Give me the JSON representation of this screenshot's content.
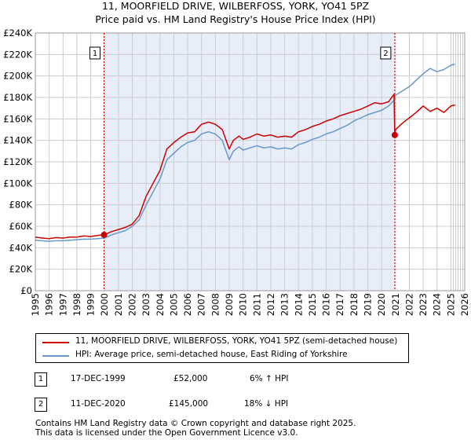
{
  "title_line1": "11, MOORFIELD DRIVE, WILBERFOSS, YORK, YO41 5PZ",
  "title_line2": "Price paid vs. HM Land Registry's House Price Index (HPI)",
  "colors": {
    "property": "#cc0000",
    "hpi": "#6699cc",
    "shade": "#e8edfa",
    "grid": "#cccccc",
    "marker_line": "#cc0000"
  },
  "chart_data": {
    "type": "line",
    "title": "11, MOORFIELD DRIVE, WILBERFOSS, YORK, YO41 5PZ",
    "ylim": [
      0,
      240000
    ],
    "xlim": [
      1995,
      2026
    ],
    "yticks": [
      0,
      20000,
      40000,
      60000,
      80000,
      100000,
      120000,
      140000,
      160000,
      180000,
      200000,
      220000,
      240000
    ],
    "ytick_labels": [
      "£0",
      "£20K",
      "£40K",
      "£60K",
      "£80K",
      "£100K",
      "£120K",
      "£140K",
      "£160K",
      "£180K",
      "£200K",
      "£220K",
      "£240K"
    ],
    "xticks": [
      1995,
      1996,
      1997,
      1998,
      1999,
      2000,
      2001,
      2002,
      2003,
      2004,
      2005,
      2006,
      2007,
      2008,
      2009,
      2010,
      2011,
      2012,
      2013,
      2014,
      2015,
      2016,
      2017,
      2018,
      2019,
      2020,
      2021,
      2022,
      2023,
      2024,
      2025,
      2026
    ],
    "xtick_labels": [
      "1995",
      "1996",
      "1997",
      "1998",
      "1999",
      "2000",
      "2001",
      "2002",
      "2003",
      "2004",
      "2005",
      "2006",
      "2007",
      "2008",
      "2009",
      "2010",
      "2011",
      "2012",
      "2013",
      "2014",
      "2015",
      "2016",
      "2017",
      "2018",
      "2019",
      "2020",
      "2021",
      "2022",
      "2023",
      "2024",
      "2025",
      "2026"
    ],
    "shaded_range": [
      1999.96,
      2020.95
    ],
    "future_start": 2025.0,
    "grid": true,
    "series": [
      {
        "name": "11, MOORFIELD DRIVE, WILBERFOSS, YORK, YO41 5PZ (semi-detached house)",
        "x": [
          1995.0,
          1995.5,
          1996.0,
          1996.5,
          1997.0,
          1997.5,
          1998.0,
          1998.5,
          1999.0,
          1999.5,
          1999.96,
          2000.5,
          2001.0,
          2001.5,
          2002.0,
          2002.5,
          2003.0,
          2003.5,
          2004.0,
          2004.5,
          2005.0,
          2005.5,
          2006.0,
          2006.5,
          2007.0,
          2007.5,
          2008.0,
          2008.5,
          2009.0,
          2009.3,
          2009.7,
          2010.0,
          2010.5,
          2011.0,
          2011.5,
          2012.0,
          2012.5,
          2013.0,
          2013.5,
          2014.0,
          2014.5,
          2015.0,
          2015.5,
          2016.0,
          2016.5,
          2017.0,
          2017.5,
          2018.0,
          2018.5,
          2019.0,
          2019.5,
          2020.0,
          2020.5,
          2020.9,
          2020.95,
          2021.0,
          2021.5,
          2022.0,
          2022.5,
          2023.0,
          2023.5,
          2024.0,
          2024.5,
          2025.0,
          2025.3
        ],
        "values": [
          50000,
          49000,
          48500,
          49500,
          49000,
          50000,
          50000,
          51000,
          50500,
          51500,
          52000,
          55000,
          57000,
          59000,
          62000,
          70000,
          88000,
          100000,
          112000,
          132000,
          138000,
          143000,
          147000,
          148000,
          155000,
          157000,
          155000,
          150000,
          132000,
          140000,
          144000,
          141000,
          143000,
          146000,
          144000,
          145000,
          143000,
          144000,
          143000,
          148000,
          150000,
          153000,
          155000,
          158000,
          160000,
          163000,
          165000,
          167000,
          169000,
          172000,
          175000,
          174000,
          176000,
          183000,
          145000,
          150000,
          156000,
          161000,
          166000,
          172000,
          167000,
          170000,
          166000,
          172000,
          173000
        ]
      },
      {
        "name": "HPI: Average price, semi-detached house, East Riding of Yorkshire",
        "x": [
          1995.0,
          1995.5,
          1996.0,
          1996.5,
          1997.0,
          1997.5,
          1998.0,
          1998.5,
          1999.0,
          1999.5,
          2000.0,
          2000.5,
          2001.0,
          2001.5,
          2002.0,
          2002.5,
          2003.0,
          2003.5,
          2004.0,
          2004.5,
          2005.0,
          2005.5,
          2006.0,
          2006.5,
          2007.0,
          2007.5,
          2008.0,
          2008.5,
          2009.0,
          2009.3,
          2009.7,
          2010.0,
          2010.5,
          2011.0,
          2011.5,
          2012.0,
          2012.5,
          2013.0,
          2013.5,
          2014.0,
          2014.5,
          2015.0,
          2015.5,
          2016.0,
          2016.5,
          2017.0,
          2017.5,
          2018.0,
          2018.5,
          2019.0,
          2019.5,
          2020.0,
          2020.5,
          2020.95,
          2021.0,
          2021.5,
          2022.0,
          2022.5,
          2023.0,
          2023.5,
          2024.0,
          2024.5,
          2025.0,
          2025.3
        ],
        "values": [
          47000,
          46500,
          46000,
          46500,
          46500,
          47000,
          47500,
          48000,
          48000,
          48500,
          49000,
          52000,
          54000,
          56000,
          60000,
          66000,
          80000,
          92000,
          104000,
          122000,
          128000,
          134000,
          138000,
          140000,
          146000,
          148000,
          146000,
          140000,
          122000,
          130000,
          134000,
          131000,
          133000,
          135000,
          133000,
          134000,
          132000,
          133000,
          132000,
          136000,
          138000,
          141000,
          143000,
          146000,
          148000,
          151000,
          154000,
          158000,
          161000,
          164000,
          166000,
          168000,
          172000,
          178000,
          182000,
          186000,
          190000,
          196000,
          202000,
          207000,
          204000,
          206000,
          210000,
          211000
        ]
      }
    ],
    "annotations": [
      {
        "label": "1",
        "x": 1999.96,
        "y": 52000
      },
      {
        "label": "2",
        "x": 2020.95,
        "y": 145000
      }
    ]
  },
  "legend": {
    "property_label": "11, MOORFIELD DRIVE, WILBERFOSS, YORK, YO41 5PZ (semi-detached house)",
    "hpi_label": "HPI: Average price, semi-detached house, East Riding of Yorkshire"
  },
  "transactions": [
    {
      "num": "1",
      "date": "17-DEC-1999",
      "price": "£52,000",
      "hpi": "6% ↑ HPI"
    },
    {
      "num": "2",
      "date": "11-DEC-2020",
      "price": "£145,000",
      "hpi": "18% ↓ HPI"
    }
  ],
  "footer_line1": "Contains HM Land Registry data © Crown copyright and database right 2025.",
  "footer_line2": "This data is licensed under the Open Government Licence v3.0."
}
